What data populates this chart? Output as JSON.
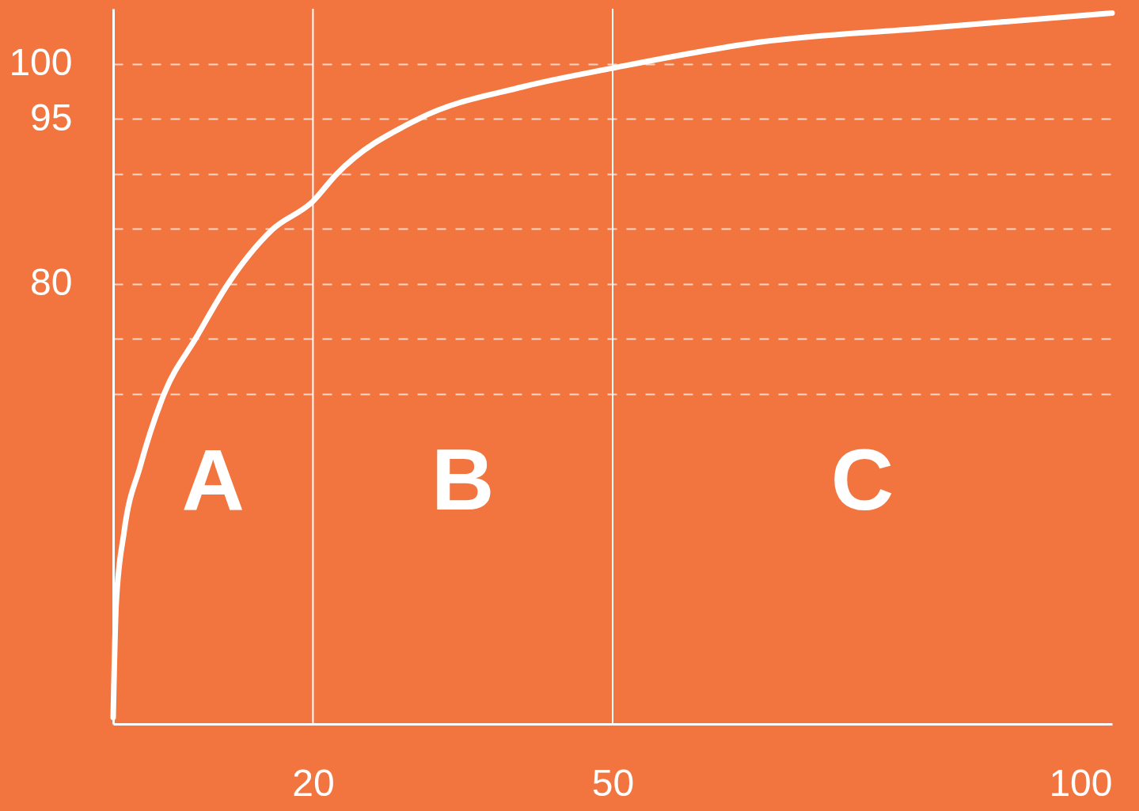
{
  "chart_data": {
    "type": "line",
    "x": [
      0,
      0.3,
      1.1,
      2.7,
      5.1,
      8.3,
      11.5,
      15.9,
      20,
      22.3,
      30.6,
      41,
      50,
      65,
      81,
      100
    ],
    "series": [
      {
        "color": "#ffffff",
        "values": [
          40.6,
          50.9,
          57.5,
          63.4,
          70,
          75.1,
          80,
          84.9,
          87.5,
          89.9,
          95,
          97.9,
          99.6,
          102,
          103.2,
          104.6
        ]
      }
    ],
    "xlim": [
      0,
      100
    ],
    "xticks": [
      20,
      50,
      100
    ],
    "ylim": [
      40,
      105
    ],
    "yticks": [
      100,
      95,
      {
        "value": 90,
        "label": null
      },
      {
        "value": 85,
        "label": null
      },
      80,
      {
        "value": 75,
        "label": null
      },
      {
        "value": 70,
        "label": null
      }
    ],
    "grid": "y",
    "line_style": "solid",
    "ref_lines": [
      {
        "axis": "x",
        "value": 20,
        "label": null,
        "color": "#ffffff"
      },
      {
        "axis": "x",
        "value": 50,
        "label": null,
        "color": "#ffffff"
      }
    ],
    "annotations": [
      "A",
      "B",
      "C"
    ]
  }
}
